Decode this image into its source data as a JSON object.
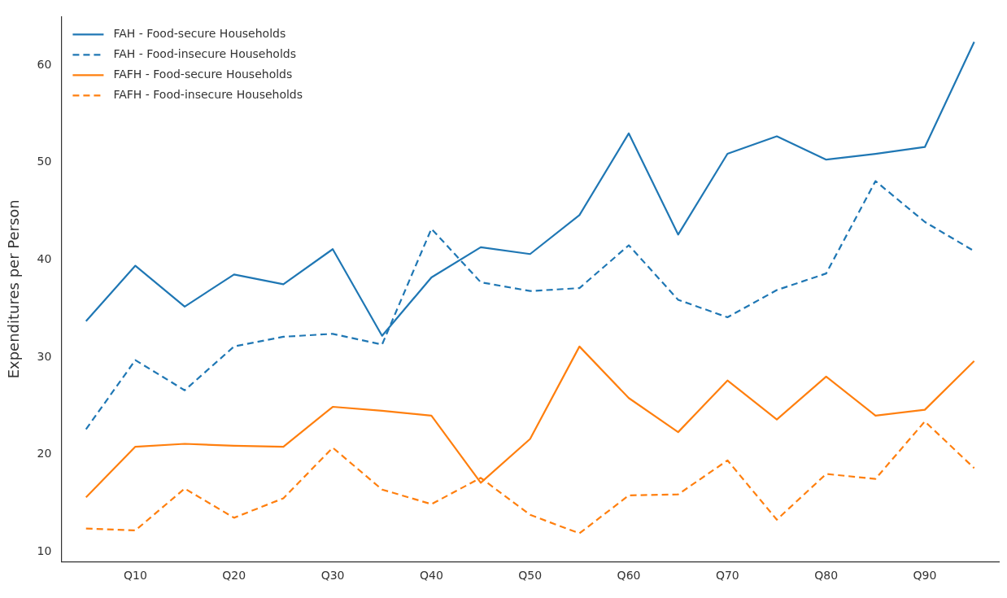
{
  "chart_data": {
    "type": "line",
    "ylabel": "Expenditures per Person",
    "categories": [
      null,
      "Q10",
      null,
      "Q20",
      null,
      "Q30",
      null,
      "Q40",
      null,
      "Q50",
      null,
      "Q60",
      null,
      "Q70",
      null,
      "Q80",
      null,
      "Q90",
      null
    ],
    "series": [
      {
        "name": "FAH - Food-secure Households",
        "color": "#1f77b4",
        "line_style": "solid",
        "values": [
          33.7,
          39.4,
          35.2,
          38.5,
          37.5,
          41.1,
          32.2,
          38.2,
          41.3,
          40.6,
          44.6,
          53.0,
          42.6,
          50.9,
          52.7,
          50.3,
          50.9,
          51.6,
          62.4
        ]
      },
      {
        "name": "FAH - Food-insecure Households",
        "color": "#1f77b4",
        "line_style": "dashed",
        "values": [
          22.6,
          29.7,
          26.6,
          31.1,
          32.1,
          32.4,
          31.3,
          43.2,
          37.7,
          36.8,
          37.1,
          41.5,
          35.9,
          34.1,
          36.9,
          38.6,
          48.1,
          43.9,
          40.9
        ]
      },
      {
        "name": "FAFH - Food-secure Households",
        "color": "#ff7f0e",
        "line_style": "solid",
        "values": [
          15.6,
          20.8,
          21.1,
          20.9,
          20.8,
          24.9,
          24.5,
          24.0,
          17.1,
          21.6,
          31.1,
          25.8,
          22.3,
          27.6,
          23.6,
          28.0,
          24.0,
          24.6,
          29.6
        ]
      },
      {
        "name": "FAFH - Food-insecure Households",
        "color": "#ff7f0e",
        "line_style": "dashed",
        "values": [
          12.4,
          12.2,
          16.5,
          13.5,
          15.5,
          20.7,
          16.4,
          14.9,
          17.6,
          13.8,
          11.9,
          15.8,
          15.9,
          19.4,
          13.3,
          18.0,
          17.5,
          23.4,
          18.6
        ]
      }
    ],
    "ylim": [
      9,
      65
    ],
    "yticks": [
      10,
      20,
      30,
      40,
      50,
      60
    ],
    "grid": false,
    "legend": "top left",
    "marker": "none"
  }
}
